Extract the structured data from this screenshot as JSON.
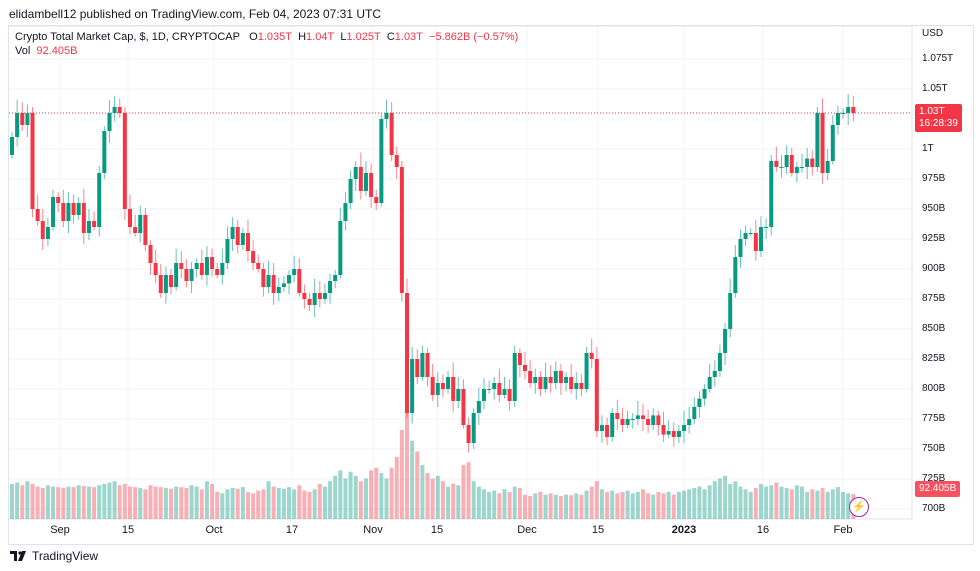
{
  "publisher_line": "elidambell12 published on TradingView.com, Feb 04, 2023 07:31 UTC",
  "legend": {
    "symbol": "Crypto Total Market Cap, $, 1D, CRYPTOCAP",
    "o_label": "O",
    "o": "1.035T",
    "h_label": "H",
    "h": "1.04T",
    "l_label": "L",
    "l": "1.025T",
    "c_label": "C",
    "c": "1.03T",
    "change": "−5.862B (−0.57%)",
    "vol_label": "Vol",
    "vol": "92.405B"
  },
  "price_axis": {
    "currency": "USD",
    "ticks": [
      "1.075T",
      "1.05T",
      "1T",
      "975B",
      "950B",
      "925B",
      "900B",
      "875B",
      "850B",
      "825B",
      "800B",
      "775B",
      "750B",
      "725B",
      "700B"
    ],
    "last_price": "1.03T",
    "countdown": "16:28:39",
    "last_volume": "92.405B"
  },
  "time_axis": [
    {
      "label": "Sep",
      "bold": false
    },
    {
      "label": "15",
      "bold": false
    },
    {
      "label": "Oct",
      "bold": false
    },
    {
      "label": "17",
      "bold": false
    },
    {
      "label": "Nov",
      "bold": false
    },
    {
      "label": "15",
      "bold": false
    },
    {
      "label": "Dec",
      "bold": false
    },
    {
      "label": "15",
      "bold": false
    },
    {
      "label": "2023",
      "bold": true
    },
    {
      "label": "16",
      "bold": false
    },
    {
      "label": "Feb",
      "bold": false
    }
  ],
  "footer": {
    "brand": "TradingView"
  },
  "colors": {
    "up": "#089981",
    "down": "#f23645",
    "grid": "#f0f3fa"
  },
  "chart_data": {
    "type": "candlestick",
    "y_unit": "B USD",
    "ylim": [
      700,
      1080
    ],
    "closes": [
      1010,
      1030,
      1020,
      1030,
      950,
      940,
      925,
      935,
      960,
      955,
      940,
      955,
      945,
      955,
      930,
      940,
      935,
      980,
      1015,
      1030,
      1035,
      1030,
      950,
      935,
      930,
      945,
      920,
      905,
      895,
      880,
      895,
      885,
      905,
      900,
      890,
      900,
      905,
      895,
      910,
      900,
      895,
      905,
      925,
      935,
      920,
      930,
      915,
      905,
      900,
      885,
      895,
      880,
      885,
      888,
      895,
      900,
      880,
      875,
      870,
      880,
      875,
      880,
      890,
      895,
      940,
      955,
      975,
      985,
      965,
      980,
      960,
      955,
      1025,
      1030,
      995,
      985,
      880,
      780,
      825,
      810,
      830,
      810,
      795,
      805,
      800,
      810,
      790,
      800,
      770,
      755,
      780,
      790,
      800,
      800,
      805,
      795,
      800,
      790,
      830,
      820,
      815,
      805,
      810,
      800,
      810,
      805,
      815,
      805,
      810,
      800,
      805,
      800,
      830,
      825,
      765,
      770,
      760,
      780,
      775,
      770,
      775,
      775,
      778,
      775,
      770,
      778,
      770,
      762,
      765,
      760,
      765,
      770,
      775,
      785,
      792,
      800,
      810,
      815,
      830,
      850,
      880,
      910,
      925,
      930,
      930,
      915,
      935,
      935,
      990,
      985,
      985,
      995,
      980,
      985,
      985,
      992,
      985,
      1030,
      980,
      990,
      1020,
      1030,
      1030,
      1035,
      1030
    ],
    "volumes": [
      130,
      135,
      125,
      140,
      130,
      120,
      115,
      125,
      120,
      118,
      115,
      120,
      118,
      125,
      122,
      120,
      118,
      125,
      130,
      135,
      140,
      125,
      130,
      120,
      118,
      115,
      110,
      125,
      120,
      118,
      115,
      112,
      120,
      118,
      115,
      125,
      120,
      110,
      140,
      130,
      100,
      95,
      110,
      115,
      112,
      118,
      100,
      95,
      105,
      110,
      140,
      120,
      115,
      112,
      118,
      110,
      125,
      105,
      100,
      110,
      130,
      120,
      140,
      160,
      180,
      150,
      175,
      160,
      140,
      150,
      180,
      190,
      170,
      150,
      190,
      230,
      330,
      440,
      290,
      250,
      200,
      170,
      150,
      160,
      140,
      120,
      130,
      125,
      200,
      210,
      140,
      120,
      110,
      100,
      105,
      95,
      110,
      100,
      120,
      115,
      90,
      85,
      95,
      100,
      90,
      95,
      90,
      85,
      90,
      88,
      95,
      90,
      105,
      120,
      140,
      110,
      100,
      105,
      95,
      100,
      105,
      95,
      100,
      110,
      95,
      90,
      100,
      95,
      100,
      90,
      100,
      105,
      110,
      115,
      120,
      110,
      125,
      140,
      150,
      160,
      130,
      140,
      120,
      110,
      100,
      115,
      130,
      120,
      125,
      135,
      120,
      115,
      110,
      125,
      120,
      100,
      110,
      105,
      115,
      100,
      110,
      118,
      100,
      95,
      92.405
    ]
  }
}
